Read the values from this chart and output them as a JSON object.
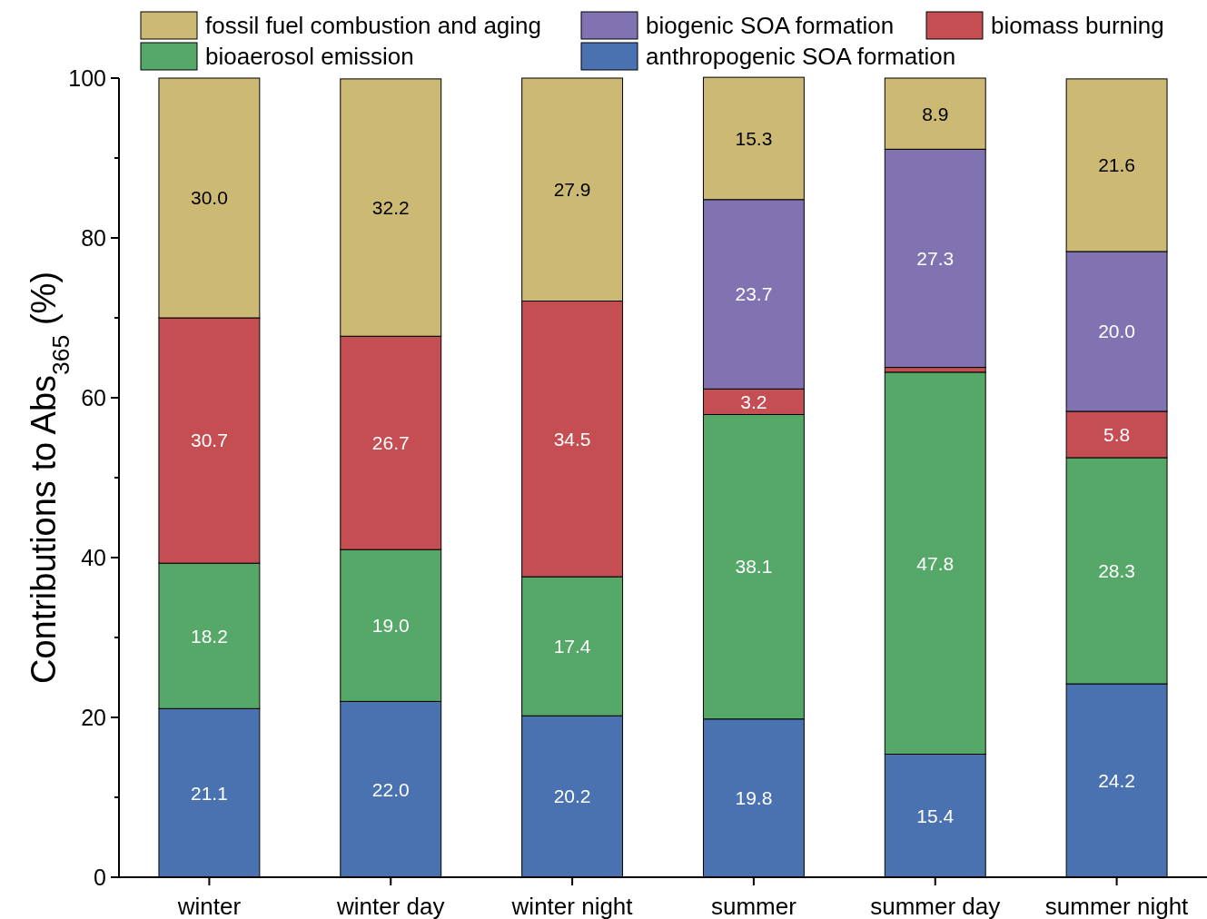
{
  "chart_data": {
    "type": "bar",
    "stacked": true,
    "ylabel": "Contributions to Abs$_{365}$ (%)",
    "categories": [
      "winter",
      "winter day",
      "winter night",
      "summer",
      "summer day",
      "summer night"
    ],
    "ylim": [
      0,
      100
    ],
    "yticks": [
      0,
      {
        "value": 10,
        "label": null
      },
      20,
      {
        "value": 30,
        "label": null
      },
      40,
      {
        "value": 50,
        "label": null
      },
      60,
      {
        "value": 70,
        "label": null
      },
      80,
      {
        "value": 90,
        "label": null
      },
      100
    ],
    "grid": false,
    "legend": "top",
    "series": [
      {
        "name": "anthropogenic SOA formation",
        "color": "#4a72b0",
        "values": [
          21.1,
          22.0,
          20.2,
          19.8,
          15.4,
          24.2
        ],
        "value_labels": [
          "21.1",
          "22.0",
          "20.2",
          "19.8",
          "15.4",
          "24.2"
        ]
      },
      {
        "name": "bioaerosol emission",
        "color": "#56a868",
        "values": [
          18.2,
          19.0,
          17.4,
          38.1,
          47.8,
          28.3
        ],
        "value_labels": [
          "18.2",
          "19.0",
          "17.4",
          "38.1",
          "47.8",
          "28.3"
        ]
      },
      {
        "name": "biomass burning",
        "color": "#c44e52",
        "values": [
          30.7,
          26.7,
          34.5,
          3.2,
          0.6,
          5.8
        ],
        "value_labels": [
          "30.7",
          "26.7",
          "34.5",
          "3.2",
          null,
          "5.8"
        ]
      },
      {
        "name": "biogenic SOA formation",
        "color": "#8172b2",
        "values": [
          null,
          null,
          null,
          23.7,
          27.3,
          20.0
        ],
        "value_labels": [
          null,
          null,
          null,
          "23.7",
          "27.3",
          "20.0"
        ]
      },
      {
        "name": "fossil fuel combustion and aging",
        "color": "#ccb974",
        "values": [
          30.0,
          32.2,
          27.9,
          15.3,
          8.9,
          21.6
        ],
        "value_labels": [
          "30.0",
          "32.2",
          "27.9",
          "15.3",
          "8.9",
          "21.6"
        ]
      }
    ]
  }
}
